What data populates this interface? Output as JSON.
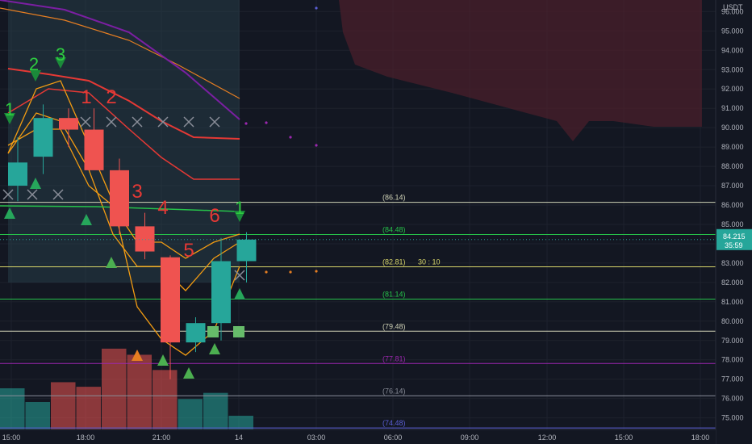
{
  "chart_data": {
    "type": "candlestick",
    "currency_label": "USDT",
    "ylim": [
      74.4,
      96.6
    ],
    "y_ticks": [
      "96.000",
      "95.000",
      "94.000",
      "93.000",
      "92.000",
      "91.000",
      "90.000",
      "89.000",
      "88.000",
      "87.000",
      "86.000",
      "85.000",
      "84.000",
      "83.000",
      "82.000",
      "81.000",
      "80.000",
      "79.000",
      "78.000",
      "77.000",
      "76.000",
      "75.000"
    ],
    "x_ticks": [
      "15:00",
      "18:00",
      "21:00",
      "14",
      "03:00",
      "06:00",
      "09:00",
      "12:00",
      "15:00",
      "18:00"
    ],
    "last_price": "84.215",
    "countdown": "35:59",
    "candles": [
      {
        "open": 87.0,
        "high": 89.5,
        "low": 86.2,
        "close": 88.2
      },
      {
        "open": 88.5,
        "high": 91.2,
        "low": 87.6,
        "close": 90.5
      },
      {
        "open": 90.5,
        "high": 91.0,
        "low": 89.0,
        "close": 89.9
      },
      {
        "open": 89.9,
        "high": 91.0,
        "low": 88.0,
        "close": 87.8
      },
      {
        "open": 87.8,
        "high": 88.4,
        "low": 84.5,
        "close": 84.9
      },
      {
        "open": 84.9,
        "high": 85.6,
        "low": 83.2,
        "close": 83.6
      },
      {
        "open": 83.3,
        "high": 83.4,
        "low": 77.0,
        "close": 78.9
      },
      {
        "open": 78.9,
        "high": 80.2,
        "low": 78.4,
        "close": 79.9
      },
      {
        "open": 79.9,
        "high": 84.3,
        "low": 79.0,
        "close": 83.1
      },
      {
        "open": 83.1,
        "high": 84.6,
        "low": 82.0,
        "close": 84.215
      }
    ],
    "volume": [
      1.35,
      0.9,
      1.55,
      1.4,
      2.65,
      2.45,
      1.95,
      1.0,
      1.2,
      0.45
    ],
    "levels": [
      {
        "label": "(86.14)",
        "value": 86.14,
        "color": "#d1d4b8"
      },
      {
        "label": "(84.48)",
        "value": 84.48,
        "color": "#26c24a"
      },
      {
        "label": "(82.81)",
        "value": 82.81,
        "color": "#d8d66a",
        "extra": "30 : 10"
      },
      {
        "label": "(81.14)",
        "value": 81.14,
        "color": "#26c24a"
      },
      {
        "label": "(79.48)",
        "value": 79.48,
        "color": "#d1d4b8"
      },
      {
        "label": "(77.81)",
        "value": 77.81,
        "color": "#9c27b0"
      },
      {
        "label": "(76.14)",
        "value": 76.14,
        "color": "#8a8e99"
      },
      {
        "label": "(74.48)",
        "value": 74.48,
        "color": "#5b5fd6"
      }
    ],
    "sequence_labels_red": [
      "1",
      "2",
      "3",
      "4",
      "5",
      "6"
    ],
    "sequence_labels_green": [
      "1",
      "2",
      "3",
      "1"
    ],
    "colors": {
      "up": "#26a69a",
      "down": "#ef5350",
      "background": "#131722",
      "grid": "#1e222d",
      "price_tag": "#26a69a"
    }
  }
}
